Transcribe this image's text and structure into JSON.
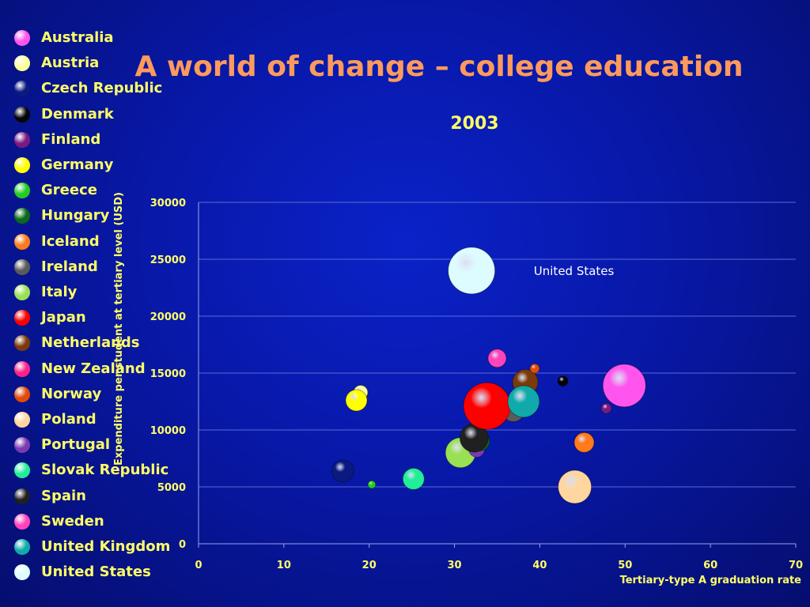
{
  "title": "A world of change – college education",
  "subtitle": "2003",
  "legend": [
    {
      "label": "Australia",
      "color": "#ff55ee"
    },
    {
      "label": "Austria",
      "color": "#ffff99"
    },
    {
      "label": "Czech Republic",
      "color": "#0a1a80"
    },
    {
      "label": "Denmark",
      "color": "#050505"
    },
    {
      "label": "Finland",
      "color": "#7a1a80"
    },
    {
      "label": "Germany",
      "color": "#ffff00"
    },
    {
      "label": "Greece",
      "color": "#22cc22"
    },
    {
      "label": "Hungary",
      "color": "#0a6a1a"
    },
    {
      "label": "Iceland",
      "color": "#ff7a1a"
    },
    {
      "label": "Ireland",
      "color": "#5a5a5a"
    },
    {
      "label": "Italy",
      "color": "#99e055"
    },
    {
      "label": "Japan",
      "color": "#ff0000"
    },
    {
      "label": "Netherlands",
      "color": "#7a3a0a"
    },
    {
      "label": "New Zealand",
      "color": "#ff2288"
    },
    {
      "label": "Norway",
      "color": "#e04a0a"
    },
    {
      "label": "Poland",
      "color": "#ffd6a0"
    },
    {
      "label": "Portugal",
      "color": "#7a3ab0"
    },
    {
      "label": "Slovak Republic",
      "color": "#22ee99"
    },
    {
      "label": "Spain",
      "color": "#202020"
    },
    {
      "label": "Sweden",
      "color": "#ff44bb"
    },
    {
      "label": "United Kingdom",
      "color": "#11aaaa"
    },
    {
      "label": "United States",
      "color": "#ddfcff"
    }
  ],
  "chart_data": {
    "type": "scatter",
    "title": "2003",
    "xlabel": "Tertiary-type A graduation rate",
    "ylabel": "Expenditure per student at tertiary level (USD)",
    "xlim": [
      0,
      70
    ],
    "ylim": [
      0,
      30000
    ],
    "xticks": [
      0,
      10,
      20,
      30,
      40,
      50,
      60,
      70
    ],
    "yticks": [
      0,
      5000,
      10000,
      15000,
      20000,
      25000,
      30000
    ],
    "grid": "horizontal",
    "annotations": [
      {
        "text": "United States",
        "x": 44,
        "y": 23600
      }
    ],
    "points": [
      {
        "name": "Czech Republic",
        "x": 16.9,
        "y": 6400,
        "size": 1.4
      },
      {
        "name": "Greece",
        "x": 20.3,
        "y": 5200,
        "size": 0.5
      },
      {
        "name": "Slovak Republic",
        "x": 25.2,
        "y": 5700,
        "size": 1.35
      },
      {
        "name": "Austria",
        "x": 19.0,
        "y": 13300,
        "size": 0.9
      },
      {
        "name": "Germany",
        "x": 18.5,
        "y": 12600,
        "size": 1.35
      },
      {
        "name": "Italy",
        "x": 30.7,
        "y": 8000,
        "size": 1.9
      },
      {
        "name": "Portugal",
        "x": 32.6,
        "y": 8300,
        "size": 1.0
      },
      {
        "name": "Hungary",
        "x": 33.0,
        "y": 9000,
        "size": 1.2
      },
      {
        "name": "Spain",
        "x": 32.3,
        "y": 9300,
        "size": 1.8
      },
      {
        "name": "Ireland",
        "x": 36.9,
        "y": 11700,
        "size": 1.4
      },
      {
        "name": "Japan",
        "x": 33.8,
        "y": 12100,
        "size": 2.95
      },
      {
        "name": "Netherlands",
        "x": 38.3,
        "y": 14200,
        "size": 1.6
      },
      {
        "name": "United Kingdom",
        "x": 38.1,
        "y": 12500,
        "size": 2.0
      },
      {
        "name": "Norway",
        "x": 39.4,
        "y": 15400,
        "size": 0.6
      },
      {
        "name": "Sweden",
        "x": 35.0,
        "y": 16300,
        "size": 1.15
      },
      {
        "name": "Denmark",
        "x": 42.7,
        "y": 14300,
        "size": 0.65
      },
      {
        "name": "Iceland",
        "x": 45.2,
        "y": 8900,
        "size": 1.25
      },
      {
        "name": "Poland",
        "x": 44.1,
        "y": 5000,
        "size": 2.1
      },
      {
        "name": "Finland",
        "x": 47.8,
        "y": 11900,
        "size": 0.65
      },
      {
        "name": "Australia",
        "x": 49.9,
        "y": 13900,
        "size": 2.7
      },
      {
        "name": "New Zealand",
        "x": 49.9,
        "y": 13900,
        "size": 0.0
      },
      {
        "name": "United States",
        "x": 32.0,
        "y": 24000,
        "size": 2.95
      }
    ]
  }
}
